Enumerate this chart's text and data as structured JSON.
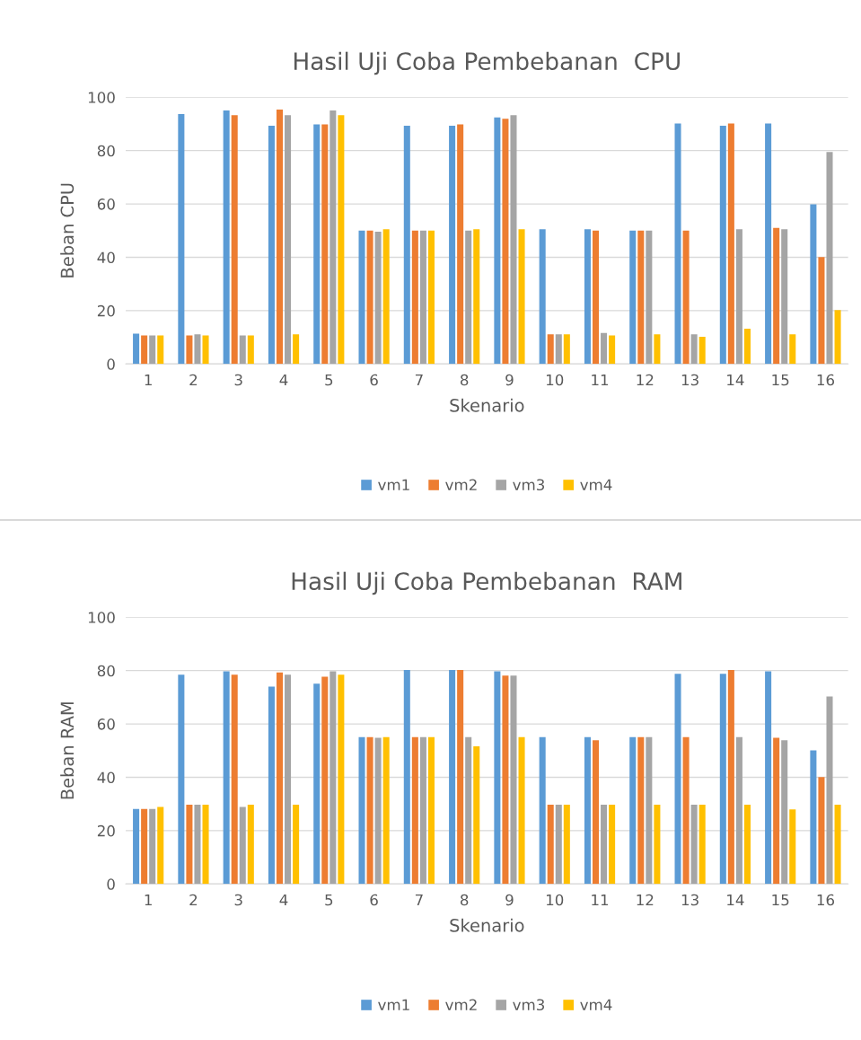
{
  "chart_data": [
    {
      "type": "bar",
      "title": "Hasil Uji Coba Pembebanan  CPU",
      "xlabel": "Skenario",
      "ylabel": "Beban CPU",
      "categories": [
        "1",
        "2",
        "3",
        "4",
        "5",
        "6",
        "7",
        "8",
        "9",
        "10",
        "11",
        "12",
        "13",
        "14",
        "15",
        "16"
      ],
      "ylim": [
        0,
        100
      ],
      "yticks": [
        0,
        20,
        40,
        60,
        80,
        100
      ],
      "grid": "y",
      "legend": "bottom",
      "series": [
        {
          "name": "vm1",
          "color": "#5b9bd5",
          "values": [
            11.4,
            93.7,
            95,
            89.3,
            89.8,
            50,
            89.3,
            89.3,
            92.4,
            50.5,
            50.5,
            50,
            90.2,
            89.3,
            90.2,
            59.9
          ]
        },
        {
          "name": "vm2",
          "color": "#ed7d31",
          "values": [
            10.7,
            10.7,
            93.3,
            95.4,
            89.8,
            50,
            50,
            89.8,
            91.9,
            11.1,
            50,
            50,
            50,
            90.2,
            51,
            40.1
          ]
        },
        {
          "name": "vm3",
          "color": "#a5a5a5",
          "values": [
            10.7,
            11.1,
            10.7,
            93.3,
            95,
            49.6,
            50,
            50,
            93.3,
            11.1,
            11.6,
            50,
            11.1,
            50.5,
            50.5,
            79.5
          ]
        },
        {
          "name": "vm4",
          "color": "#ffc000",
          "values": [
            10.7,
            10.7,
            10.7,
            11.1,
            93.3,
            50.5,
            50,
            50.5,
            50.5,
            11.1,
            10.7,
            11.1,
            10.2,
            13.2,
            11.1,
            20.2
          ]
        }
      ]
    },
    {
      "type": "bar",
      "title": "Hasil Uji Coba Pembebanan  RAM",
      "xlabel": "Skenario",
      "ylabel": "Beban RAM",
      "categories": [
        "1",
        "2",
        "3",
        "4",
        "5",
        "6",
        "7",
        "8",
        "9",
        "10",
        "11",
        "12",
        "13",
        "14",
        "15",
        "16"
      ],
      "ylim": [
        0,
        100
      ],
      "yticks": [
        0,
        20,
        40,
        60,
        80,
        100
      ],
      "grid": "y",
      "legend": "bottom",
      "series": [
        {
          "name": "vm1",
          "color": "#5b9bd5",
          "values": [
            28.1,
            78.5,
            79.7,
            74,
            75.1,
            55.1,
            80.2,
            80.2,
            79.7,
            55.1,
            55.1,
            55.1,
            78.8,
            78.8,
            79.7,
            50.1
          ]
        },
        {
          "name": "vm2",
          "color": "#ed7d31",
          "values": [
            28.1,
            29.7,
            78.5,
            79.3,
            77.7,
            55.1,
            55.1,
            80.2,
            78.1,
            29.7,
            53.9,
            55.1,
            55.1,
            80.2,
            54.8,
            40.1
          ]
        },
        {
          "name": "vm3",
          "color": "#a5a5a5",
          "values": [
            28.1,
            29.7,
            28.9,
            78.5,
            79.7,
            54.8,
            55.1,
            55.1,
            78.1,
            29.7,
            29.7,
            55.1,
            29.7,
            55.1,
            53.9,
            70.3
          ]
        },
        {
          "name": "vm4",
          "color": "#ffc000",
          "values": [
            28.9,
            29.7,
            29.7,
            29.7,
            78.5,
            55.1,
            55.1,
            51.6,
            55.1,
            29.7,
            29.7,
            29.7,
            29.7,
            29.7,
            28.0,
            29.7
          ]
        }
      ]
    }
  ]
}
